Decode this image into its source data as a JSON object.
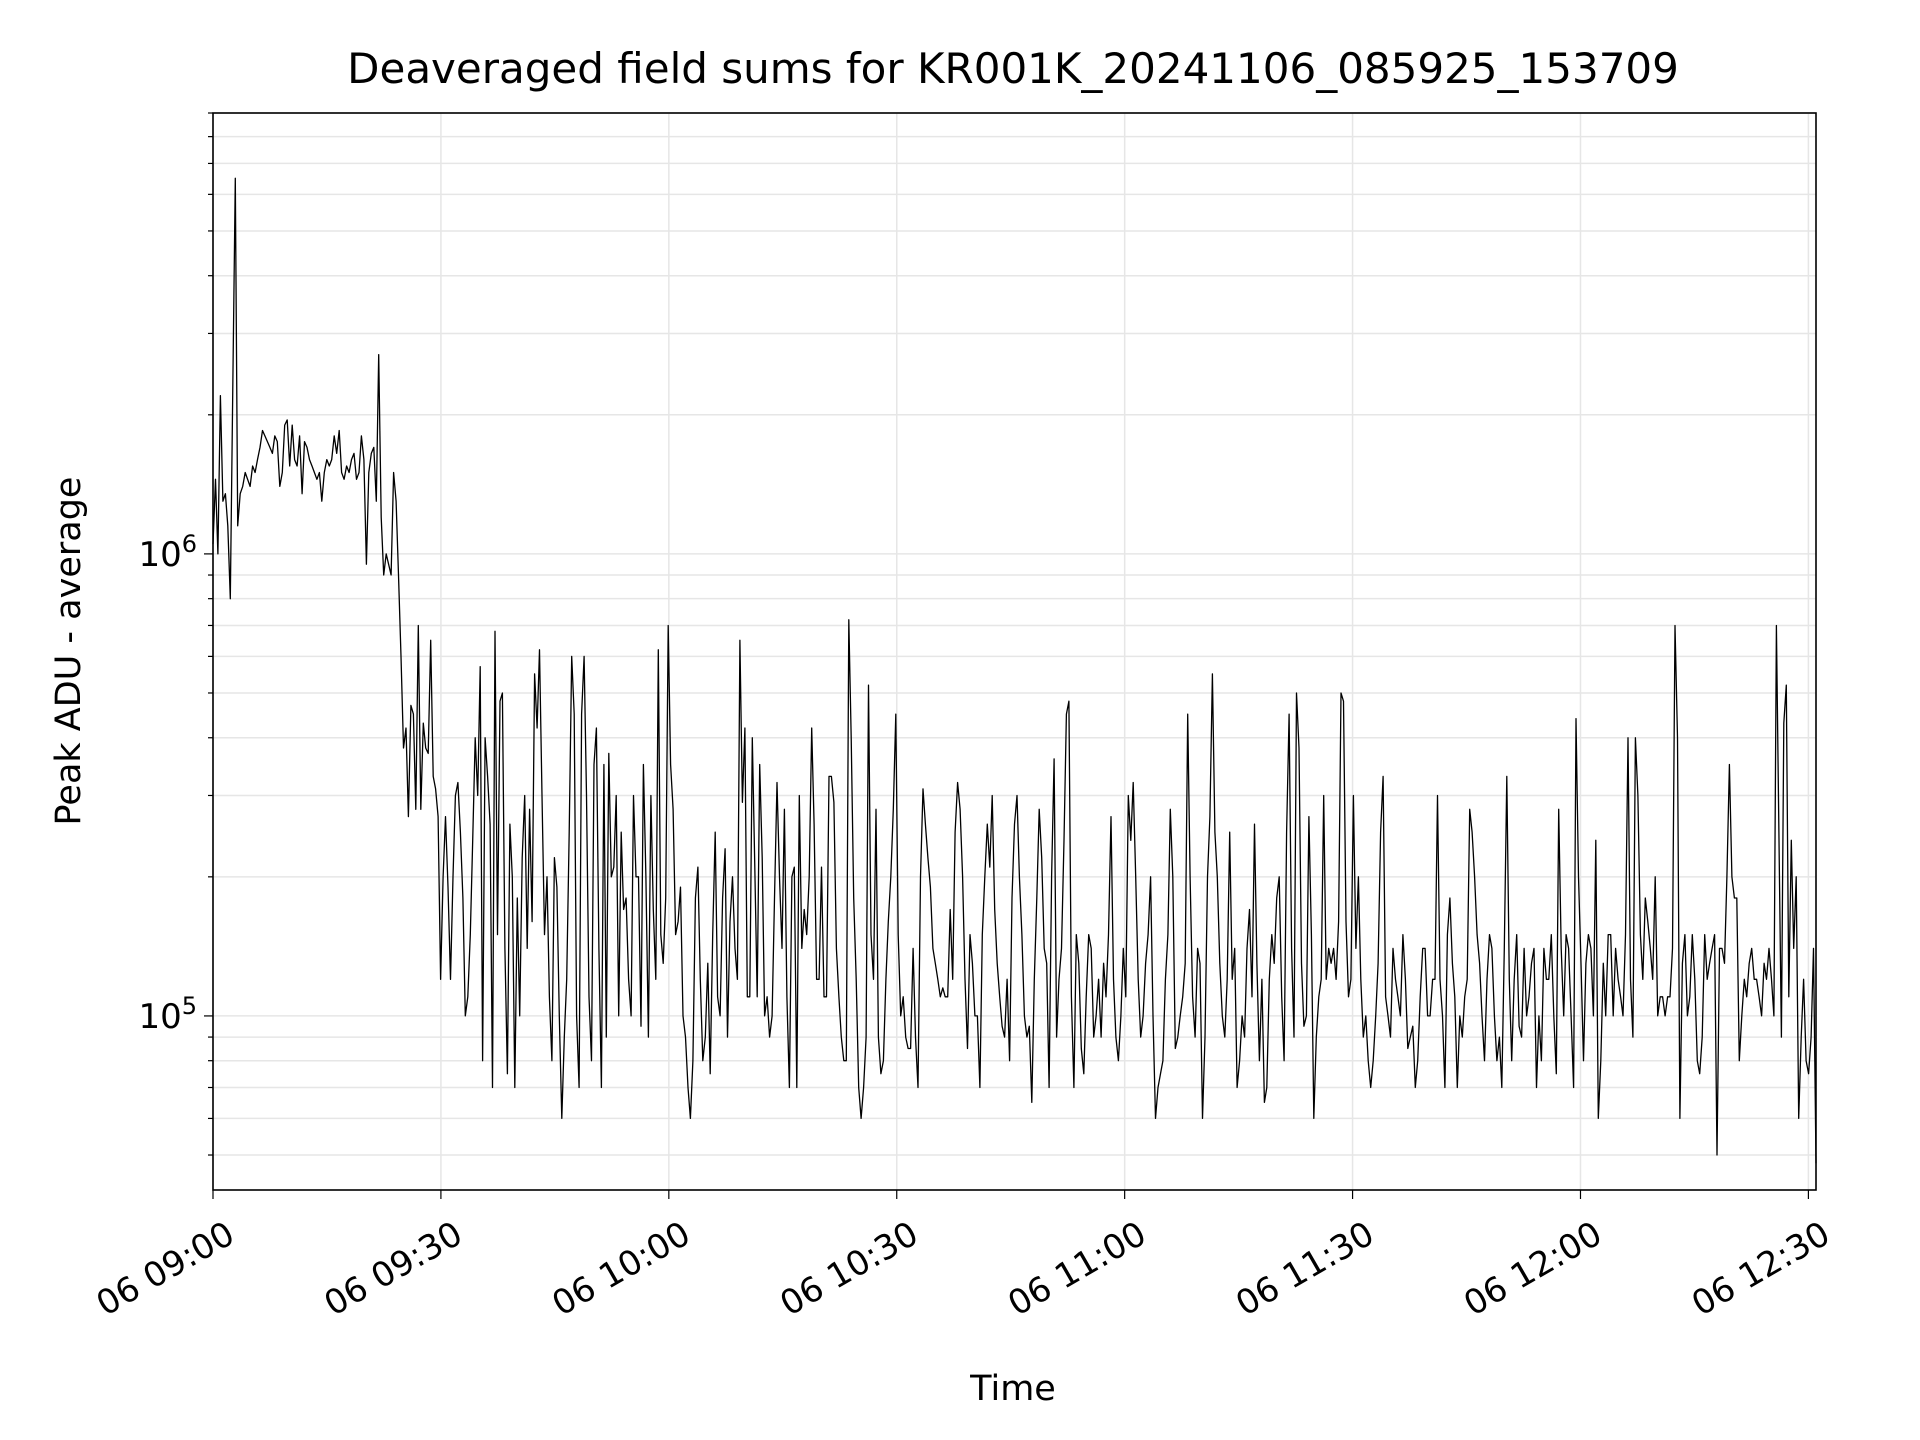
{
  "chart_data": {
    "type": "line",
    "title": "Deaveraged field sums for KR001K_20241106_085925_153709",
    "xlabel": "Time",
    "ylabel": "Peak ADU - average",
    "y_scale": "log",
    "ylim": [
      42000,
      9000000
    ],
    "grid": true,
    "x_tick_labels": [
      "06 09:00",
      "06 09:30",
      "06 10:00",
      "06 10:30",
      "06 11:00",
      "06 11:30",
      "06 12:00",
      "06 12:30"
    ],
    "x_tick_times": [
      "09:00",
      "09:30",
      "10:00",
      "10:30",
      "11:00",
      "11:30",
      "12:00",
      "12:30"
    ],
    "xlim": [
      "09:00",
      "12:31"
    ],
    "y_major_ticks": [
      {
        "value": 100000,
        "base": "10",
        "exp": "5"
      },
      {
        "value": 1000000,
        "base": "10",
        "exp": "6"
      }
    ],
    "series": [
      {
        "color": "#000000",
        "x_start": "09:00",
        "x_end": "12:31",
        "values": [
          1050000,
          1450000,
          1000000,
          2200000,
          1300000,
          1350000,
          1150000,
          800000,
          2300000,
          6500000,
          1150000,
          1350000,
          1400000,
          1500000,
          1450000,
          1400000,
          1550000,
          1500000,
          1600000,
          1700000,
          1850000,
          1800000,
          1750000,
          1700000,
          1650000,
          1800000,
          1750000,
          1400000,
          1500000,
          1900000,
          1950000,
          1550000,
          1900000,
          1600000,
          1550000,
          1800000,
          1350000,
          1750000,
          1700000,
          1600000,
          1550000,
          1500000,
          1450000,
          1500000,
          1300000,
          1500000,
          1600000,
          1550000,
          1600000,
          1800000,
          1650000,
          1850000,
          1500000,
          1450000,
          1550000,
          1500000,
          1600000,
          1650000,
          1450000,
          1500000,
          1800000,
          1600000,
          950000,
          1500000,
          1650000,
          1700000,
          1300000,
          2700000,
          1200000,
          900000,
          1000000,
          950000,
          900000,
          1500000,
          1300000,
          900000,
          600000,
          380000,
          420000,
          270000,
          470000,
          450000,
          280000,
          700000,
          280000,
          430000,
          380000,
          370000,
          650000,
          330000,
          310000,
          270000,
          120000,
          200000,
          270000,
          190000,
          120000,
          200000,
          300000,
          320000,
          250000,
          180000,
          100000,
          110000,
          150000,
          240000,
          400000,
          300000,
          570000,
          80000,
          400000,
          330000,
          260000,
          70000,
          680000,
          150000,
          480000,
          500000,
          140000,
          75000,
          260000,
          200000,
          70000,
          180000,
          100000,
          220000,
          300000,
          140000,
          280000,
          160000,
          550000,
          420000,
          620000,
          300000,
          150000,
          200000,
          110000,
          80000,
          220000,
          190000,
          100000,
          60000,
          90000,
          120000,
          250000,
          600000,
          450000,
          100000,
          70000,
          450000,
          600000,
          300000,
          110000,
          80000,
          350000,
          420000,
          140000,
          70000,
          350000,
          90000,
          370000,
          200000,
          210000,
          300000,
          100000,
          250000,
          170000,
          180000,
          120000,
          100000,
          300000,
          200000,
          200000,
          95000,
          350000,
          200000,
          90000,
          300000,
          170000,
          120000,
          620000,
          150000,
          130000,
          180000,
          700000,
          350000,
          280000,
          150000,
          160000,
          190000,
          100000,
          90000,
          70000,
          60000,
          80000,
          180000,
          210000,
          120000,
          80000,
          90000,
          130000,
          75000,
          150000,
          250000,
          110000,
          100000,
          180000,
          230000,
          90000,
          160000,
          200000,
          140000,
          120000,
          650000,
          290000,
          420000,
          110000,
          110000,
          400000,
          210000,
          110000,
          350000,
          220000,
          100000,
          110000,
          90000,
          100000,
          180000,
          320000,
          200000,
          140000,
          280000,
          110000,
          70000,
          200000,
          210000,
          70000,
          300000,
          140000,
          170000,
          150000,
          200000,
          420000,
          260000,
          120000,
          120000,
          210000,
          110000,
          110000,
          330000,
          330000,
          290000,
          140000,
          110000,
          90000,
          80000,
          80000,
          720000,
          400000,
          180000,
          120000,
          70000,
          60000,
          70000,
          90000,
          520000,
          150000,
          120000,
          280000,
          90000,
          75000,
          80000,
          120000,
          160000,
          200000,
          280000,
          450000,
          150000,
          100000,
          110000,
          90000,
          85000,
          85000,
          140000,
          90000,
          70000,
          200000,
          310000,
          260000,
          220000,
          190000,
          140000,
          130000,
          120000,
          110000,
          115000,
          110000,
          110000,
          170000,
          120000,
          250000,
          320000,
          280000,
          200000,
          120000,
          85000,
          150000,
          130000,
          100000,
          100000,
          70000,
          150000,
          200000,
          260000,
          210000,
          300000,
          170000,
          130000,
          110000,
          95000,
          90000,
          120000,
          80000,
          180000,
          260000,
          300000,
          200000,
          150000,
          100000,
          90000,
          95000,
          65000,
          120000,
          180000,
          280000,
          220000,
          140000,
          130000,
          70000,
          200000,
          360000,
          90000,
          120000,
          140000,
          240000,
          450000,
          480000,
          110000,
          70000,
          150000,
          130000,
          85000,
          75000,
          110000,
          150000,
          140000,
          90000,
          100000,
          120000,
          90000,
          130000,
          110000,
          150000,
          270000,
          120000,
          90000,
          80000,
          100000,
          140000,
          110000,
          300000,
          240000,
          320000,
          200000,
          120000,
          90000,
          100000,
          130000,
          150000,
          200000,
          100000,
          60000,
          70000,
          75000,
          80000,
          120000,
          150000,
          280000,
          200000,
          85000,
          90000,
          100000,
          110000,
          130000,
          450000,
          200000,
          110000,
          90000,
          140000,
          130000,
          60000,
          90000,
          200000,
          270000,
          550000,
          250000,
          200000,
          130000,
          100000,
          90000,
          120000,
          250000,
          120000,
          140000,
          70000,
          80000,
          100000,
          90000,
          140000,
          170000,
          110000,
          260000,
          130000,
          80000,
          120000,
          65000,
          70000,
          120000,
          150000,
          130000,
          180000,
          200000,
          110000,
          80000,
          250000,
          450000,
          140000,
          90000,
          500000,
          380000,
          130000,
          95000,
          100000,
          270000,
          150000,
          60000,
          90000,
          110000,
          120000,
          300000,
          120000,
          140000,
          130000,
          140000,
          120000,
          160000,
          500000,
          480000,
          160000,
          110000,
          120000,
          300000,
          140000,
          200000,
          120000,
          90000,
          100000,
          80000,
          70000,
          80000,
          100000,
          130000,
          250000,
          330000,
          110000,
          100000,
          90000,
          140000,
          120000,
          110000,
          100000,
          150000,
          120000,
          85000,
          90000,
          95000,
          70000,
          80000,
          110000,
          140000,
          140000,
          100000,
          100000,
          120000,
          120000,
          300000,
          120000,
          100000,
          70000,
          150000,
          180000,
          130000,
          110000,
          70000,
          100000,
          90000,
          110000,
          120000,
          280000,
          250000,
          200000,
          150000,
          130000,
          100000,
          80000,
          120000,
          150000,
          140000,
          100000,
          80000,
          90000,
          70000,
          140000,
          330000,
          120000,
          80000,
          120000,
          150000,
          95000,
          90000,
          140000,
          100000,
          110000,
          130000,
          140000,
          70000,
          100000,
          80000,
          140000,
          120000,
          120000,
          150000,
          100000,
          75000,
          280000,
          140000,
          100000,
          150000,
          140000,
          100000,
          70000,
          440000,
          200000,
          130000,
          80000,
          130000,
          150000,
          140000,
          100000,
          240000,
          60000,
          80000,
          130000,
          100000,
          150000,
          150000,
          100000,
          140000,
          120000,
          110000,
          100000,
          150000,
          400000,
          120000,
          90000,
          400000,
          300000,
          150000,
          120000,
          180000,
          160000,
          140000,
          120000,
          200000,
          100000,
          110000,
          110000,
          100000,
          110000,
          110000,
          140000,
          700000,
          400000,
          60000,
          130000,
          150000,
          100000,
          110000,
          150000,
          120000,
          80000,
          75000,
          90000,
          150000,
          120000,
          130000,
          140000,
          150000,
          50000,
          140000,
          140000,
          130000,
          200000,
          350000,
          200000,
          180000,
          180000,
          80000,
          100000,
          120000,
          110000,
          130000,
          140000,
          120000,
          120000,
          110000,
          100000,
          130000,
          120000,
          140000,
          120000,
          100000,
          700000,
          250000,
          90000,
          430000,
          520000,
          110000,
          240000,
          140000,
          200000,
          60000,
          90000,
          120000,
          80000,
          75000,
          90000,
          140000,
          48000
        ]
      }
    ]
  }
}
